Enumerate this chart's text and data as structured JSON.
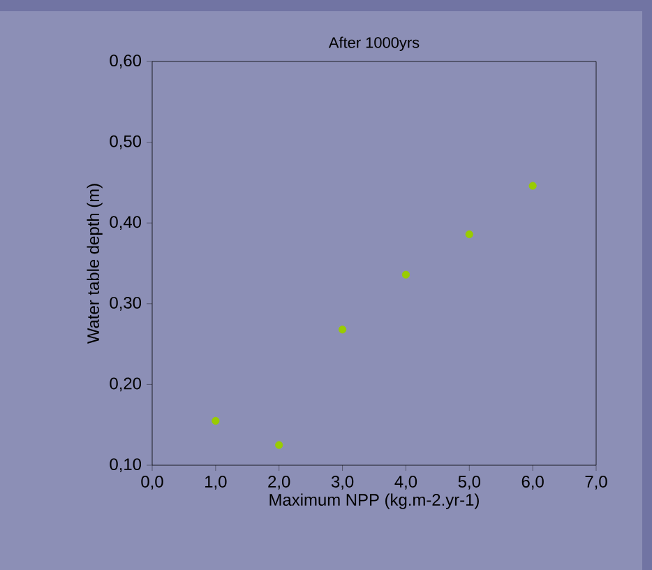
{
  "chart_data": {
    "type": "scatter",
    "title": "After 1000yrs",
    "xlabel": "Maximum NPP (kg.m-2.yr-1)",
    "ylabel": "Water table depth (m)",
    "x": [
      1,
      2,
      3,
      4,
      5,
      6
    ],
    "series": [
      {
        "color": "#99cc00",
        "values": [
          0.155,
          0.125,
          0.268,
          0.336,
          0.386,
          0.446
        ]
      }
    ],
    "marker": "circle",
    "grid": false,
    "xlim": [
      0,
      7
    ],
    "ylim": [
      0.1,
      0.6
    ],
    "xticks": [
      {
        "value": 0,
        "label": "0,0"
      },
      {
        "value": 1,
        "label": "1,0"
      },
      {
        "value": 2,
        "label": "2,0"
      },
      {
        "value": 3,
        "label": "3,0"
      },
      {
        "value": 4,
        "label": "4,0"
      },
      {
        "value": 5,
        "label": "5,0"
      },
      {
        "value": 6,
        "label": "6,0"
      },
      {
        "value": 7,
        "label": "7,0"
      }
    ],
    "yticks": [
      {
        "value": 0.1,
        "label": "0,10"
      },
      {
        "value": 0.2,
        "label": "0,20"
      },
      {
        "value": 0.3,
        "label": "0,30"
      },
      {
        "value": 0.4,
        "label": "0,40"
      },
      {
        "value": 0.5,
        "label": "0,50"
      },
      {
        "value": 0.6,
        "label": "0,60"
      }
    ]
  }
}
